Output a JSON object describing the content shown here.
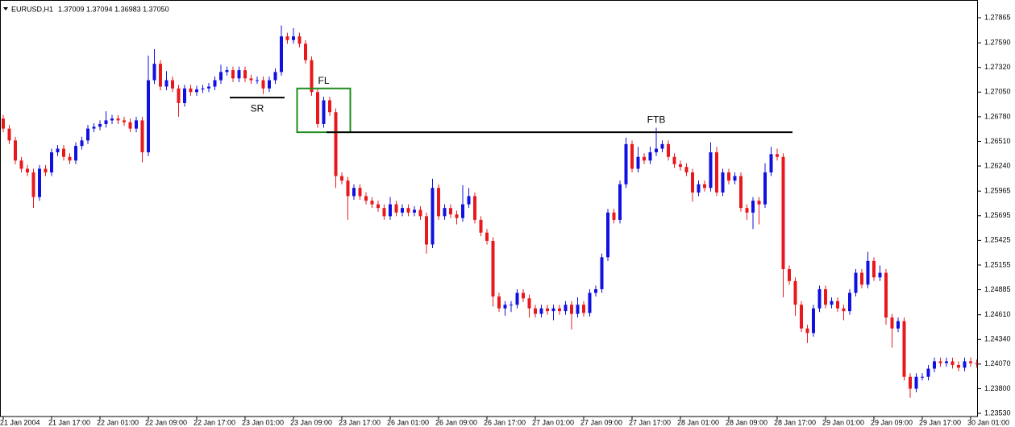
{
  "chart_data": {
    "type": "candlestick",
    "symbol": "EURUSD,H1",
    "quote": "1.37009 1.37094 1.36983 1.37050",
    "categories": [
      "21 Jan 2004",
      null,
      null,
      null,
      null,
      null,
      null,
      null,
      "21 Jan 17:00",
      null,
      null,
      null,
      null,
      null,
      null,
      null,
      "22 Jan 01:00",
      null,
      null,
      null,
      null,
      null,
      null,
      null,
      "22 Jan 09:00",
      null,
      null,
      null,
      null,
      null,
      null,
      null,
      "22 Jan 17:00",
      null,
      null,
      null,
      null,
      null,
      null,
      null,
      "23 Jan 01:00",
      null,
      null,
      null,
      null,
      null,
      null,
      null,
      "23 Jan 09:00",
      null,
      null,
      null,
      null,
      null,
      null,
      null,
      "23 Jan 17:00",
      null,
      null,
      null,
      null,
      null,
      null,
      null,
      "26 Jan 01:00",
      null,
      null,
      null,
      null,
      null,
      null,
      null,
      "26 Jan 09:00",
      null,
      null,
      null,
      null,
      null,
      null,
      null,
      "26 Jan 17:00",
      null,
      null,
      null,
      null,
      null,
      null,
      null,
      "27 Jan 01:00",
      null,
      null,
      null,
      null,
      null,
      null,
      null,
      "27 Jan 09:00",
      null,
      null,
      null,
      null,
      null,
      null,
      null,
      "27 Jan 17:00",
      null,
      null,
      null,
      null,
      null,
      null,
      null,
      "28 Jan 01:00",
      null,
      null,
      null,
      null,
      null,
      null,
      null,
      "28 Jan 09:00",
      null,
      null,
      null,
      null,
      null,
      null,
      null,
      "28 Jan 17:00",
      null,
      null,
      null,
      null,
      null,
      null,
      null,
      "29 Jan 01:00",
      null,
      null,
      null,
      null,
      null,
      null,
      null,
      "29 Jan 09:00",
      null,
      null,
      null,
      null,
      null,
      null,
      null,
      "29 Jan 17:00",
      null,
      null,
      null,
      null,
      null,
      null,
      null,
      "30 Jan 01:00",
      null
    ],
    "up_color": "#1010e0",
    "down_color": "#e8191c",
    "open": [
      1.2676,
      1.2665,
      1.2652,
      1.263,
      1.2621,
      1.2617,
      1.259,
      1.2621,
      1.2617,
      1.2639,
      1.2643,
      1.2634,
      1.263,
      1.2646,
      1.2652,
      1.2665,
      1.2667,
      1.267,
      1.2674,
      1.2676,
      1.2674,
      1.2672,
      1.2665,
      1.2674,
      1.2639,
      1.2718,
      1.2736,
      1.2711,
      1.2718,
      1.2709,
      1.2693,
      1.2709,
      1.2705,
      1.2708,
      1.2709,
      1.2711,
      1.2718,
      1.2727,
      1.2729,
      1.272,
      1.2729,
      1.272,
      1.2718,
      1.2718,
      1.2709,
      1.2718,
      1.2727,
      1.2766,
      1.2762,
      1.2766,
      1.2758,
      1.274,
      1.2705,
      1.267,
      1.2696,
      1.2683,
      1.2613,
      1.2608,
      1.2591,
      1.26,
      1.2591,
      1.2586,
      1.2582,
      1.2578,
      1.2569,
      1.2582,
      1.2573,
      1.2578,
      1.2573,
      1.2576,
      1.2569,
      1.2538,
      1.26,
      1.2569,
      1.2578,
      1.2571,
      1.2567,
      1.2582,
      1.2591,
      1.2565,
      1.2551,
      1.2542,
      1.2481,
      1.2468,
      1.2472,
      1.2472,
      1.2485,
      1.2479,
      1.2468,
      1.2462,
      1.2468,
      1.2465,
      1.2468,
      1.2465,
      1.2472,
      1.2462,
      1.2472,
      1.2463,
      1.2485,
      1.2489,
      1.2524,
      1.2573,
      1.2565,
      1.2604,
      1.2648,
      1.2621,
      1.2634,
      1.263,
      1.2639,
      1.2643,
      1.2648,
      1.2634,
      1.2626,
      1.2623,
      1.2617,
      1.2595,
      1.2604,
      1.26,
      1.2639,
      1.2595,
      1.2617,
      1.2608,
      1.2613,
      1.2578,
      1.2573,
      1.2586,
      1.2582,
      1.2617,
      1.2637,
      1.2634,
      1.2511,
      1.2498,
      1.2472,
      1.2446,
      1.2441,
      1.2468,
      1.2489,
      1.2472,
      1.2476,
      1.2468,
      1.2465,
      1.2485,
      1.2507,
      1.2494,
      1.252,
      1.2502,
      1.2507,
      1.2458,
      1.2446,
      1.2454,
      1.2393,
      1.238,
      1.2393,
      1.2393,
      1.2402,
      1.241,
      1.2408,
      1.241,
      1.2406,
      1.2403,
      1.241,
      1.2408
    ],
    "high": [
      1.268,
      1.2669,
      1.2656,
      1.2634,
      1.2625,
      1.2621,
      1.2625,
      1.2625,
      1.2643,
      1.2647,
      1.2647,
      1.2638,
      1.265,
      1.2656,
      1.2669,
      1.2671,
      1.2674,
      1.2684,
      1.268,
      1.268,
      1.2678,
      1.2676,
      1.2678,
      1.2678,
      1.2745,
      1.2752,
      1.274,
      1.2728,
      1.2722,
      1.2713,
      1.2713,
      1.2713,
      1.2712,
      1.2713,
      1.2715,
      1.2722,
      1.2735,
      1.2733,
      1.2733,
      1.2733,
      1.2733,
      1.2724,
      1.2722,
      1.2722,
      1.2722,
      1.2731,
      1.2778,
      1.277,
      1.2775,
      1.277,
      1.2762,
      1.2744,
      1.2709,
      1.27,
      1.27,
      1.2687,
      1.2617,
      1.2612,
      1.2604,
      1.2604,
      1.2595,
      1.259,
      1.2586,
      1.2582,
      1.259,
      1.2586,
      1.2582,
      1.2582,
      1.258,
      1.258,
      1.2573,
      1.261,
      1.2604,
      1.2582,
      1.2582,
      1.2575,
      1.2603,
      1.26,
      1.2595,
      1.2569,
      1.2555,
      1.2546,
      1.2485,
      1.2476,
      1.2476,
      1.2489,
      1.2489,
      1.2483,
      1.2472,
      1.2472,
      1.2472,
      1.2472,
      1.2472,
      1.2476,
      1.2476,
      1.248,
      1.2476,
      1.2489,
      1.2493,
      1.2528,
      1.2577,
      1.2577,
      1.2608,
      1.2655,
      1.2652,
      1.2645,
      1.2638,
      1.2645,
      1.2666,
      1.2652,
      1.2652,
      1.2638,
      1.263,
      1.2627,
      1.2621,
      1.2608,
      1.2608,
      1.265,
      1.2645,
      1.2621,
      1.2621,
      1.2617,
      1.2617,
      1.2582,
      1.259,
      1.259,
      1.2627,
      1.2645,
      1.2643,
      1.2638,
      1.2515,
      1.2502,
      1.2476,
      1.245,
      1.2472,
      1.2493,
      1.2493,
      1.248,
      1.248,
      1.2472,
      1.2489,
      1.2511,
      1.2511,
      1.253,
      1.2524,
      1.2515,
      1.2511,
      1.2462,
      1.2458,
      1.2458,
      1.2397,
      1.2397,
      1.2397,
      1.2406,
      1.2414,
      1.2414,
      1.2414,
      1.2414,
      1.241,
      1.2414,
      1.2414,
      1.2412
    ],
    "low": [
      1.2661,
      1.2648,
      1.2626,
      1.2617,
      1.2613,
      1.2578,
      1.2586,
      1.2613,
      1.2613,
      1.2635,
      1.263,
      1.2626,
      1.2626,
      1.2642,
      1.2648,
      1.2661,
      1.2663,
      1.2666,
      1.267,
      1.267,
      1.2668,
      1.2661,
      1.2661,
      1.2628,
      1.2635,
      1.2714,
      1.2707,
      1.2707,
      1.2705,
      1.2678,
      1.2689,
      1.2701,
      1.2701,
      1.2704,
      1.2705,
      1.2707,
      1.2714,
      1.2723,
      1.2716,
      1.2716,
      1.2716,
      1.2714,
      1.2714,
      1.2703,
      1.2705,
      1.2714,
      1.2723,
      1.2758,
      1.2758,
      1.2754,
      1.2736,
      1.2701,
      1.2666,
      1.2666,
      1.2679,
      1.26,
      1.2604,
      1.2565,
      1.2587,
      1.2587,
      1.2582,
      1.2578,
      1.2574,
      1.2565,
      1.2565,
      1.2569,
      1.2569,
      1.2569,
      1.2569,
      1.2565,
      1.2528,
      1.2534,
      1.2565,
      1.2565,
      1.2567,
      1.256,
      1.2563,
      1.2578,
      1.2561,
      1.2547,
      1.2538,
      1.247,
      1.2464,
      1.246,
      1.2464,
      1.2468,
      1.2475,
      1.2458,
      1.2458,
      1.2458,
      1.2461,
      1.2455,
      1.2461,
      1.2461,
      1.2445,
      1.2458,
      1.2459,
      1.2459,
      1.2481,
      1.2485,
      1.252,
      1.2561,
      1.2561,
      1.26,
      1.2617,
      1.2617,
      1.2626,
      1.2626,
      1.2635,
      1.2639,
      1.263,
      1.2622,
      1.2619,
      1.2613,
      1.2585,
      1.2591,
      1.2596,
      1.2596,
      1.2591,
      1.2591,
      1.2604,
      1.2604,
      1.2574,
      1.2565,
      1.2555,
      1.256,
      1.2578,
      1.2613,
      1.263,
      1.248,
      1.2494,
      1.246,
      1.2442,
      1.243,
      1.2437,
      1.2464,
      1.2468,
      1.2468,
      1.2464,
      1.2455,
      1.2461,
      1.2481,
      1.249,
      1.249,
      1.2498,
      1.2498,
      1.245,
      1.2425,
      1.2442,
      1.2389,
      1.237,
      1.2376,
      1.2389,
      1.2389,
      1.2398,
      1.2404,
      1.2404,
      1.2402,
      1.2399,
      1.2399,
      1.2404,
      1.2403
    ],
    "close": [
      1.2665,
      1.2652,
      1.263,
      1.2621,
      1.2617,
      1.259,
      1.2621,
      1.2617,
      1.2639,
      1.2643,
      1.2634,
      1.263,
      1.2646,
      1.2652,
      1.2665,
      1.2667,
      1.267,
      1.2674,
      1.2676,
      1.2674,
      1.2672,
      1.2665,
      1.2674,
      1.2639,
      1.2718,
      1.2736,
      1.2711,
      1.2718,
      1.2709,
      1.2693,
      1.2709,
      1.2705,
      1.2708,
      1.2709,
      1.2711,
      1.2718,
      1.2727,
      1.2729,
      1.272,
      1.2729,
      1.272,
      1.2718,
      1.2718,
      1.2709,
      1.2718,
      1.2727,
      1.2766,
      1.2762,
      1.2766,
      1.2758,
      1.274,
      1.2705,
      1.267,
      1.2696,
      1.2683,
      1.2613,
      1.2608,
      1.2591,
      1.26,
      1.2591,
      1.2586,
      1.2582,
      1.2578,
      1.2569,
      1.2582,
      1.2573,
      1.2578,
      1.2573,
      1.2576,
      1.2569,
      1.2538,
      1.26,
      1.2569,
      1.2578,
      1.2571,
      1.2567,
      1.2582,
      1.2591,
      1.2565,
      1.2551,
      1.2542,
      1.2481,
      1.2468,
      1.2472,
      1.2472,
      1.2485,
      1.2479,
      1.2468,
      1.2462,
      1.2468,
      1.2465,
      1.2468,
      1.2465,
      1.2472,
      1.2462,
      1.2472,
      1.2463,
      1.2485,
      1.2489,
      1.2524,
      1.2573,
      1.2565,
      1.2604,
      1.2648,
      1.2621,
      1.2634,
      1.263,
      1.2639,
      1.2643,
      1.2648,
      1.2634,
      1.2626,
      1.2623,
      1.2617,
      1.2595,
      1.2604,
      1.26,
      1.2639,
      1.2595,
      1.2617,
      1.2608,
      1.2613,
      1.2578,
      1.2573,
      1.2586,
      1.2582,
      1.2617,
      1.2637,
      1.2634,
      1.2511,
      1.2498,
      1.2472,
      1.2446,
      1.2441,
      1.2468,
      1.2489,
      1.2472,
      1.2476,
      1.2468,
      1.2465,
      1.2485,
      1.2507,
      1.2494,
      1.252,
      1.2502,
      1.2507,
      1.2458,
      1.2446,
      1.2454,
      1.2393,
      1.238,
      1.2393,
      1.2393,
      1.2402,
      1.241,
      1.2408,
      1.241,
      1.2406,
      1.2403,
      1.241,
      1.2408,
      1.2407
    ],
    "ylim": [
      1.23495,
      1.28059
    ],
    "yticks": [
      1.27865,
      {
        "value": 1.2759,
        "label": "1.27590"
      },
      {
        "value": 1.2732,
        "label": "1.27320"
      },
      {
        "value": 1.2705,
        "label": "1.27050"
      },
      {
        "value": 1.2678,
        "label": "1.26780"
      },
      {
        "value": 1.2651,
        "label": "1.26510"
      },
      {
        "value": 1.2624,
        "label": "1.26240"
      },
      1.25965,
      1.25695,
      1.25425,
      1.25155,
      1.24885,
      {
        "value": 1.2461,
        "label": "1.24610"
      },
      {
        "value": 1.2434,
        "label": "1.24340"
      },
      {
        "value": 1.2407,
        "label": "1.24070"
      },
      {
        "value": 1.238,
        "label": "1.23800"
      },
      {
        "value": 1.2353,
        "label": "1.23530"
      }
    ],
    "annotations": [
      {
        "kind": "line",
        "text": "SR",
        "price": 1.2699,
        "from": 38,
        "to": 46,
        "label_at": 42,
        "color": "#000000"
      },
      {
        "kind": "box",
        "text": "FL",
        "top": 1.2709,
        "bottom": 1.2661,
        "from": 49,
        "to": 57,
        "label_at": 53,
        "color": "#1e8c1e"
      },
      {
        "kind": "line",
        "text": "FTB",
        "price": 1.2661,
        "from": 54,
        "to": 130,
        "label_at": 108,
        "color": "#000000"
      }
    ]
  }
}
